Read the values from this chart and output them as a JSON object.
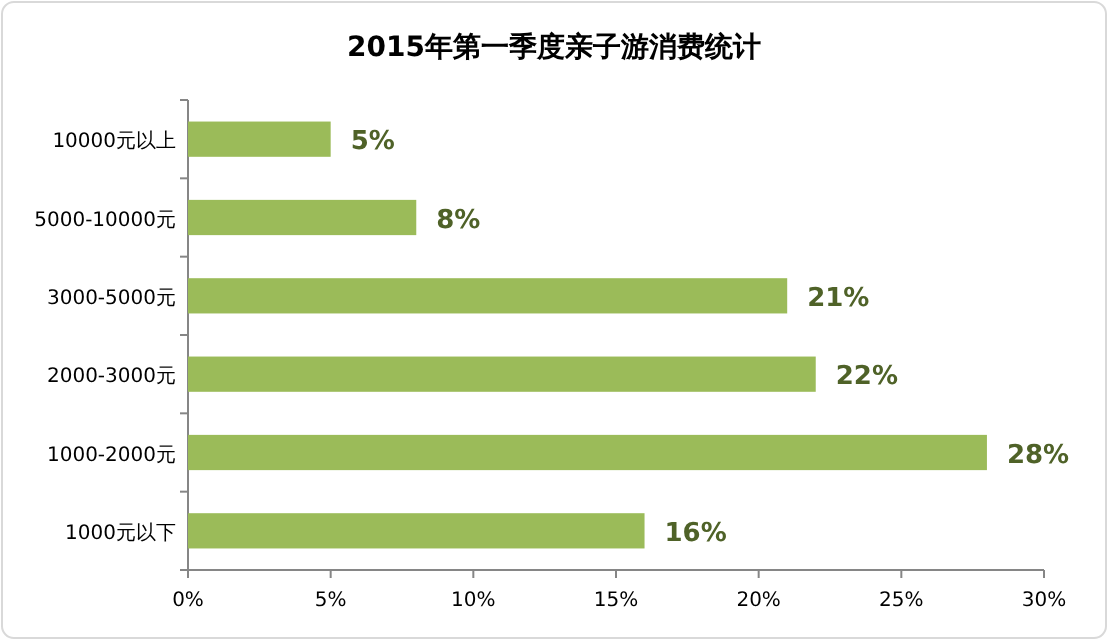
{
  "chart_data": {
    "type": "bar",
    "orientation": "horizontal",
    "title": "2015年第一季度亲子游消费统计",
    "categories": [
      "10000元以上",
      "5000-10000元",
      "3000-5000元",
      "2000-3000元",
      "1000-2000元",
      "1000元以下"
    ],
    "values": [
      5,
      8,
      21,
      22,
      28,
      16
    ],
    "value_labels": [
      "5%",
      "8%",
      "21%",
      "22%",
      "28%",
      "16%"
    ],
    "color": "#9bbb59",
    "xlim": [
      0,
      30
    ],
    "xticks": [
      {
        "value": 0,
        "label": "0%"
      },
      {
        "value": 5,
        "label": "5%"
      },
      {
        "value": 10,
        "label": "10%"
      },
      {
        "value": 15,
        "label": "15%"
      },
      {
        "value": 20,
        "label": "20%"
      },
      {
        "value": 25,
        "label": "25%"
      },
      {
        "value": 30,
        "label": "30%"
      }
    ]
  }
}
